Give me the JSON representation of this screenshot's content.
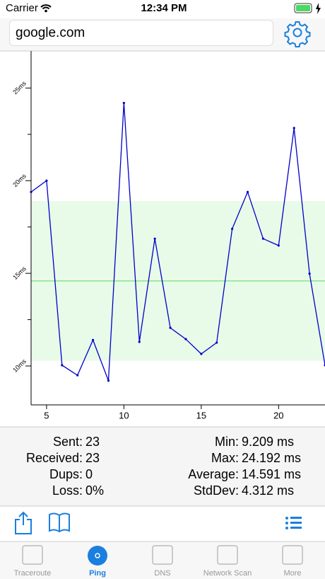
{
  "status_bar": {
    "carrier": "Carrier",
    "time": "12:34 PM"
  },
  "search": {
    "text": "google.com"
  },
  "chart_data": {
    "type": "line",
    "x": [
      4,
      5,
      6,
      7,
      8,
      9,
      10,
      11,
      12,
      13,
      14,
      15,
      16,
      17,
      18,
      19,
      20,
      21,
      22,
      23
    ],
    "values": [
      19.39,
      20.0,
      10.04,
      9.5,
      11.4,
      9.209,
      24.192,
      11.3,
      16.87,
      12.06,
      11.45,
      10.65,
      11.26,
      17.4,
      19.39,
      16.87,
      16.5,
      22.84,
      14.98,
      10.04
    ],
    "color": "#0000cc",
    "xlim": [
      4,
      23
    ],
    "xticks": [
      5,
      10,
      15,
      20
    ],
    "ylim": [
      7.9,
      27
    ],
    "yticks": [
      {
        "value": 10,
        "label": "10ms"
      },
      {
        "value": 15,
        "label": "15ms"
      },
      {
        "value": 20,
        "label": "20ms"
      },
      {
        "value": 25,
        "label": "25ms"
      }
    ],
    "y_minor_ticks": [
      12.5,
      17.5,
      22.5
    ],
    "average": 14.591,
    "average_color": "#8de38d",
    "band": [
      10.279,
      18.903
    ],
    "band_color": "#e8fbe8"
  },
  "stats": {
    "left": [
      {
        "label": "Sent:",
        "value": "23"
      },
      {
        "label": "Received:",
        "value": "23"
      },
      {
        "label": "Dups:",
        "value": "0"
      },
      {
        "label": "Loss:",
        "value": "0%"
      }
    ],
    "right": [
      {
        "label": "Min:",
        "value": "9.209 ms"
      },
      {
        "label": "Max:",
        "value": "24.192 ms"
      },
      {
        "label": "Average:",
        "value": "14.591 ms"
      },
      {
        "label": "StdDev:",
        "value": "4.312 ms"
      }
    ]
  },
  "tabs": [
    "Traceroute",
    "Ping",
    "DNS",
    "Network Scan",
    "More"
  ],
  "active_tab": 1
}
